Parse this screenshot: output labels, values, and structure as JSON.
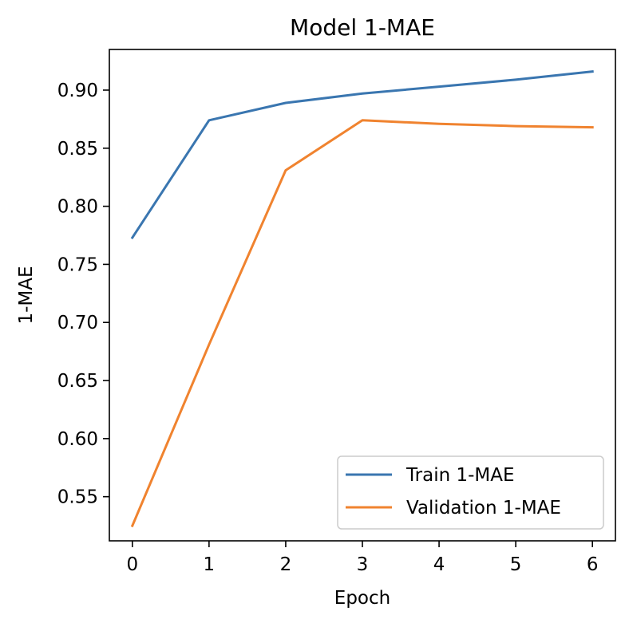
{
  "chart_data": {
    "type": "line",
    "title": "Model 1-MAE",
    "xlabel": "Epoch",
    "ylabel": "1-MAE",
    "x": [
      0,
      1,
      2,
      3,
      4,
      5,
      6
    ],
    "xlim": [
      -0.3,
      6.3
    ],
    "ylim": [
      0.512,
      0.935
    ],
    "xticks": [
      0,
      1,
      2,
      3,
      4,
      5,
      6
    ],
    "yticks": [
      0.55,
      0.6,
      0.65,
      0.7,
      0.75,
      0.8,
      0.85,
      0.9
    ],
    "ytick_labels": [
      "0.55",
      "0.60",
      "0.65",
      "0.70",
      "0.75",
      "0.80",
      "0.85",
      "0.90"
    ],
    "grid": false,
    "legend_position": "lower-right",
    "series": [
      {
        "name": "Train 1-MAE",
        "color": "#3a76b0",
        "values": [
          0.773,
          0.874,
          0.889,
          0.897,
          0.903,
          0.909,
          0.916
        ]
      },
      {
        "name": "Validation 1-MAE",
        "color": "#f0832f",
        "values": [
          0.525,
          0.681,
          0.831,
          0.874,
          0.871,
          0.869,
          0.868
        ]
      }
    ]
  }
}
